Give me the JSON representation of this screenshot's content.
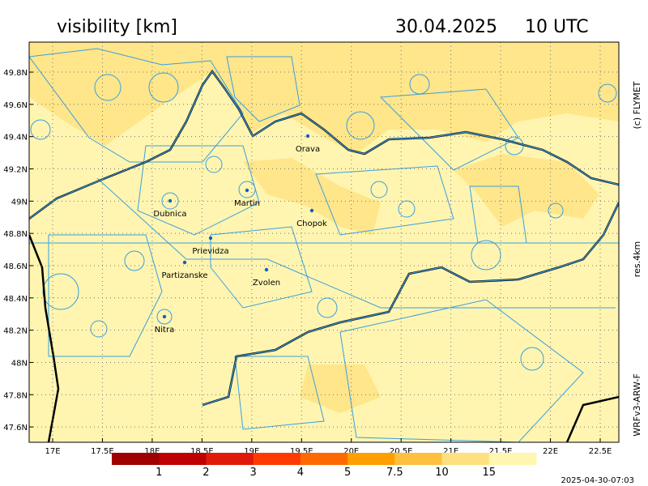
{
  "header": {
    "title": "visibility [km]",
    "date": "30.04.2025",
    "time": "10 UTC"
  },
  "side_labels": {
    "copyright": "(c) FLYMET",
    "resolution": "res.4km",
    "model": "WRFv3-ARW-F"
  },
  "timestamp": "2025-04-30-07:03",
  "map": {
    "xlim": [
      16.764,
      22.687
    ],
    "ylim": [
      47.505,
      49.986
    ],
    "grid": true,
    "xticks": [
      {
        "value": 17,
        "label": "17E"
      },
      {
        "value": 17.5,
        "label": "17.5E"
      },
      {
        "value": 18,
        "label": "18E"
      },
      {
        "value": 18.5,
        "label": "18.5E"
      },
      {
        "value": 19,
        "label": "19E"
      },
      {
        "value": 19.5,
        "label": "19.5E"
      },
      {
        "value": 20,
        "label": "20E"
      },
      {
        "value": 20.5,
        "label": "20.5E"
      },
      {
        "value": 21,
        "label": "21E"
      },
      {
        "value": 21.5,
        "label": "21.5E"
      },
      {
        "value": 22,
        "label": "22E"
      },
      {
        "value": 22.5,
        "label": "22.5E"
      }
    ],
    "yticks": [
      {
        "value": 49.8,
        "label": "49.8N"
      },
      {
        "value": 49.6,
        "label": "49.6N"
      },
      {
        "value": 49.4,
        "label": "49.4N"
      },
      {
        "value": 49.2,
        "label": "49.2N"
      },
      {
        "value": 49,
        "label": "49N"
      },
      {
        "value": 48.8,
        "label": "48.8N"
      },
      {
        "value": 48.6,
        "label": "48.6N"
      },
      {
        "value": 48.4,
        "label": "48.4N"
      },
      {
        "value": 48.2,
        "label": "48.2N"
      },
      {
        "value": 48,
        "label": "48N"
      },
      {
        "value": 47.8,
        "label": "47.8N"
      },
      {
        "value": 47.6,
        "label": "47.6N"
      }
    ],
    "cities": [
      "Orava",
      "Martin",
      "Dubnica",
      "Chopok",
      "Prievidza",
      "Partizanske",
      "Zvolen",
      "Nitra"
    ]
  },
  "colorbar": {
    "colors": [
      "#a00000",
      "#c00000",
      "#e01a0a",
      "#ff3a00",
      "#ff6a00",
      "#ffa000",
      "#ffc040",
      "#ffe080",
      "#fff6b0"
    ],
    "ticks": [
      1,
      2,
      3,
      4,
      5,
      7.5,
      10,
      15
    ]
  }
}
